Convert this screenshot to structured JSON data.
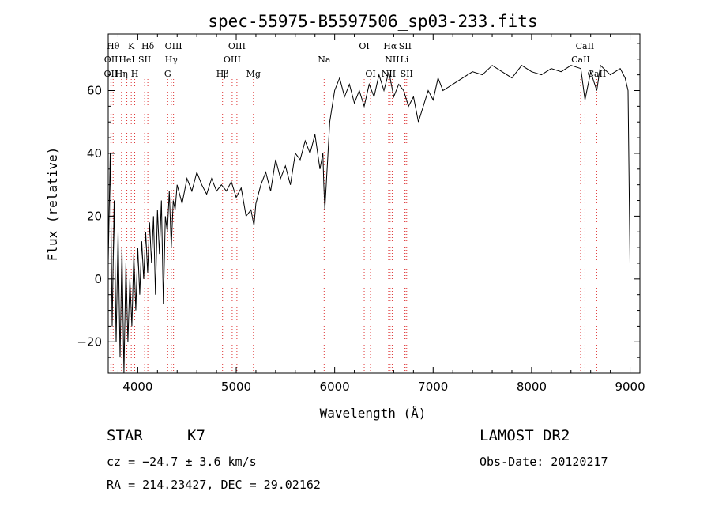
{
  "chart_data": {
    "type": "line",
    "title": "spec-55975-B5597506_sp03-233.fits",
    "xlabel": "Wavelength (Å)",
    "ylabel": "Flux (relative)",
    "xlim": [
      3700,
      9100
    ],
    "ylim": [
      -30,
      78
    ],
    "xticks": [
      4000,
      5000,
      6000,
      7000,
      8000,
      9000
    ],
    "yticks": [
      -20,
      0,
      20,
      40,
      60
    ],
    "grid": false,
    "series": [
      {
        "color": "#000000",
        "x": [
          3700,
          3720,
          3740,
          3760,
          3780,
          3800,
          3820,
          3840,
          3860,
          3880,
          3900,
          3920,
          3940,
          3960,
          3980,
          4000,
          4020,
          4040,
          4060,
          4080,
          4100,
          4120,
          4140,
          4160,
          4180,
          4200,
          4220,
          4240,
          4260,
          4280,
          4300,
          4320,
          4340,
          4360,
          4380,
          4400,
          4450,
          4500,
          4550,
          4600,
          4650,
          4700,
          4750,
          4800,
          4850,
          4900,
          4950,
          5000,
          5050,
          5100,
          5150,
          5180,
          5200,
          5250,
          5300,
          5350,
          5400,
          5450,
          5500,
          5550,
          5600,
          5650,
          5700,
          5750,
          5800,
          5850,
          5880,
          5890,
          5900,
          5950,
          6000,
          6050,
          6100,
          6150,
          6200,
          6250,
          6300,
          6350,
          6400,
          6450,
          6500,
          6550,
          6563,
          6600,
          6650,
          6700,
          6750,
          6800,
          6850,
          6900,
          6950,
          7000,
          7050,
          7100,
          7200,
          7300,
          7400,
          7500,
          7600,
          7700,
          7800,
          7900,
          8000,
          8100,
          8200,
          8300,
          8400,
          8500,
          8542,
          8600,
          8662,
          8700,
          8800,
          8900,
          8950,
          8980,
          9000
        ],
        "y": [
          5,
          40,
          -15,
          25,
          -20,
          15,
          -25,
          10,
          -30,
          5,
          -20,
          0,
          -15,
          8,
          -10,
          10,
          -5,
          12,
          0,
          15,
          2,
          18,
          5,
          20,
          -5,
          22,
          8,
          25,
          -8,
          20,
          15,
          28,
          10,
          25,
          22,
          30,
          24,
          32,
          28,
          34,
          30,
          27,
          32,
          28,
          30,
          28,
          31,
          26,
          29,
          20,
          22,
          17,
          24,
          30,
          34,
          28,
          38,
          32,
          36,
          30,
          40,
          38,
          44,
          40,
          46,
          35,
          40,
          30,
          22,
          50,
          60,
          64,
          58,
          62,
          56,
          60,
          55,
          62,
          58,
          65,
          60,
          66,
          64,
          58,
          62,
          60,
          55,
          58,
          50,
          55,
          60,
          57,
          64,
          60,
          62,
          64,
          66,
          65,
          68,
          66,
          64,
          68,
          66,
          65,
          67,
          66,
          68,
          67,
          57,
          66,
          60,
          68,
          65,
          67,
          64,
          60,
          5
        ]
      }
    ],
    "spectral_lines": [
      {
        "label": "OII",
        "x": 3727,
        "row": 2
      },
      {
        "label": "Hθ",
        "x": 3750,
        "row": 0
      },
      {
        "label": "OII",
        "x": 3729,
        "row": 1
      },
      {
        "label": "K",
        "x": 3934,
        "row": 0
      },
      {
        "label": "HeI",
        "x": 3889,
        "row": 1
      },
      {
        "label": "Hη",
        "x": 3835,
        "row": 2
      },
      {
        "label": "SII",
        "x": 4070,
        "row": 1
      },
      {
        "label": "H",
        "x": 3969,
        "row": 2
      },
      {
        "label": "Hδ",
        "x": 4102,
        "row": 0
      },
      {
        "label": "OIII",
        "x": 4363,
        "row": 0
      },
      {
        "label": "Hγ",
        "x": 4341,
        "row": 1
      },
      {
        "label": "G",
        "x": 4304,
        "row": 2
      },
      {
        "label": "Hβ",
        "x": 4861,
        "row": 2
      },
      {
        "label": "OIII",
        "x": 5007,
        "row": 0
      },
      {
        "label": "OIII",
        "x": 4959,
        "row": 1
      },
      {
        "label": "Mg",
        "x": 5175,
        "row": 2
      },
      {
        "label": "Na",
        "x": 5893,
        "row": 1
      },
      {
        "label": "OI",
        "x": 6300,
        "row": 0
      },
      {
        "label": "OI",
        "x": 6364,
        "row": 2
      },
      {
        "label": "Hα",
        "x": 6563,
        "row": 0
      },
      {
        "label": "SII",
        "x": 6716,
        "row": 0
      },
      {
        "label": "NII",
        "x": 6584,
        "row": 1
      },
      {
        "label": "Li",
        "x": 6708,
        "row": 1
      },
      {
        "label": "NII",
        "x": 6548,
        "row": 2
      },
      {
        "label": "SII",
        "x": 6731,
        "row": 2
      },
      {
        "label": "CaII",
        "x": 8542,
        "row": 0
      },
      {
        "label": "CaII",
        "x": 8498,
        "row": 1
      },
      {
        "label": "CaII",
        "x": 8662,
        "row": 2
      }
    ]
  },
  "info": {
    "class": "STAR",
    "subclass": "K7",
    "survey": "LAMOST DR2",
    "cz": "cz = −24.7 ± 3.6 km/s",
    "obsdate": "Obs-Date: 20120217",
    "radec": "RA = 214.23427, DEC =  29.02162"
  }
}
